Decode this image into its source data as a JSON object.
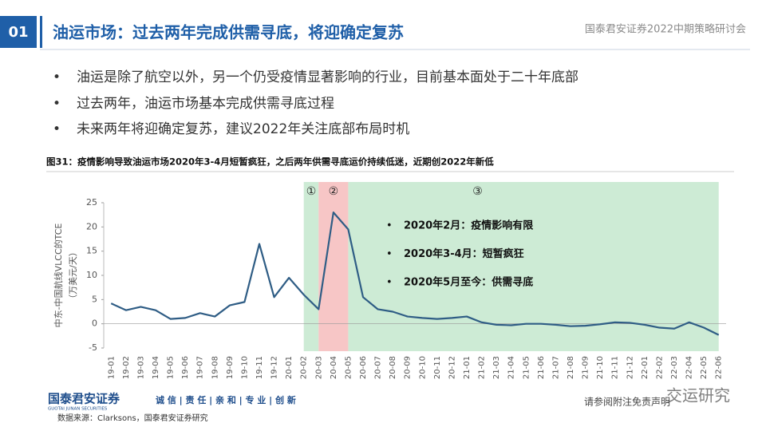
{
  "header": {
    "number": "01",
    "title": "油运市场：过去两年完成供需寻底，将迎确定复苏",
    "event": "国泰君安证券2022中期策略研讨会"
  },
  "bullets": [
    "油运是除了航空以外，另一个仍受疫情显著影响的行业，目前基本面处于二十年底部",
    "过去两年，油运市场基本完成供需寻底过程",
    "未来两年将迎确定复苏，建议2022年关注底部布局时机"
  ],
  "figure_caption": "图31：疫情影响导致油运市场2020年3-4月短暂疯狂，之后两年供需寻底运价持续低迷，近期创2022年新低",
  "chart_data": {
    "type": "line",
    "y_label": [
      "中东-中国航线VLCC的TCE",
      "（万美元/天）"
    ],
    "categories": [
      "19-01",
      "19-02",
      "19-03",
      "19-04",
      "19-05",
      "19-06",
      "19-07",
      "19-08",
      "19-09",
      "19-10",
      "19-11",
      "19-12",
      "20-01",
      "20-02",
      "20-03",
      "20-04",
      "20-05",
      "20-06",
      "20-07",
      "20-08",
      "20-09",
      "20-10",
      "20-11",
      "20-12",
      "21-01",
      "21-02",
      "21-03",
      "21-04",
      "21-05",
      "21-06",
      "21-07",
      "21-08",
      "21-09",
      "21-10",
      "21-11",
      "21-12",
      "22-01",
      "22-02",
      "22-03",
      "22-04",
      "22-05",
      "22-06"
    ],
    "series": [
      {
        "color": "#2f5d85",
        "values": [
          4.2,
          2.8,
          3.5,
          2.8,
          1.0,
          1.2,
          2.2,
          1.5,
          3.8,
          4.5,
          16.5,
          5.5,
          9.5,
          6.0,
          3.0,
          23,
          19.5,
          5.5,
          3.0,
          2.5,
          1.5,
          1.2,
          1.0,
          1.2,
          1.5,
          0.3,
          -0.2,
          -0.3,
          0,
          0,
          -0.2,
          -0.5,
          -0.4,
          -0.1,
          0.3,
          0.2,
          -0.2,
          -0.8,
          -1.0,
          0.3,
          -0.8,
          -2.3
        ]
      }
    ],
    "ylim": [
      -5,
      25
    ],
    "yticks": [
      -5,
      0,
      5,
      10,
      15,
      20,
      25
    ],
    "regions": [
      {
        "label": "①",
        "start": "20-02",
        "end": "20-03",
        "color": "#cdebd5"
      },
      {
        "label": "②",
        "start": "20-03",
        "end": "20-05",
        "color": "#f7c6c6"
      },
      {
        "label": "③",
        "start": "20-05",
        "end": "22-06",
        "color": "#cdebd5"
      }
    ],
    "annotations": [
      "2020年2月：疫情影响有限",
      "2020年3-4月：短暂疯狂",
      "2020年5月至今：供需寻底"
    ]
  },
  "footer": {
    "logo": "国泰君安证券",
    "logo_en": "GUOTAI JUNAN SECURITIES",
    "slogan": "诚 信 | 责 任 | 亲 和 | 专 业 | 创 新",
    "disclaimer": "请参阅附注免责声明",
    "source": "数据来源：Clarksons，国泰君安证券研究",
    "watermark": "交运研究"
  }
}
